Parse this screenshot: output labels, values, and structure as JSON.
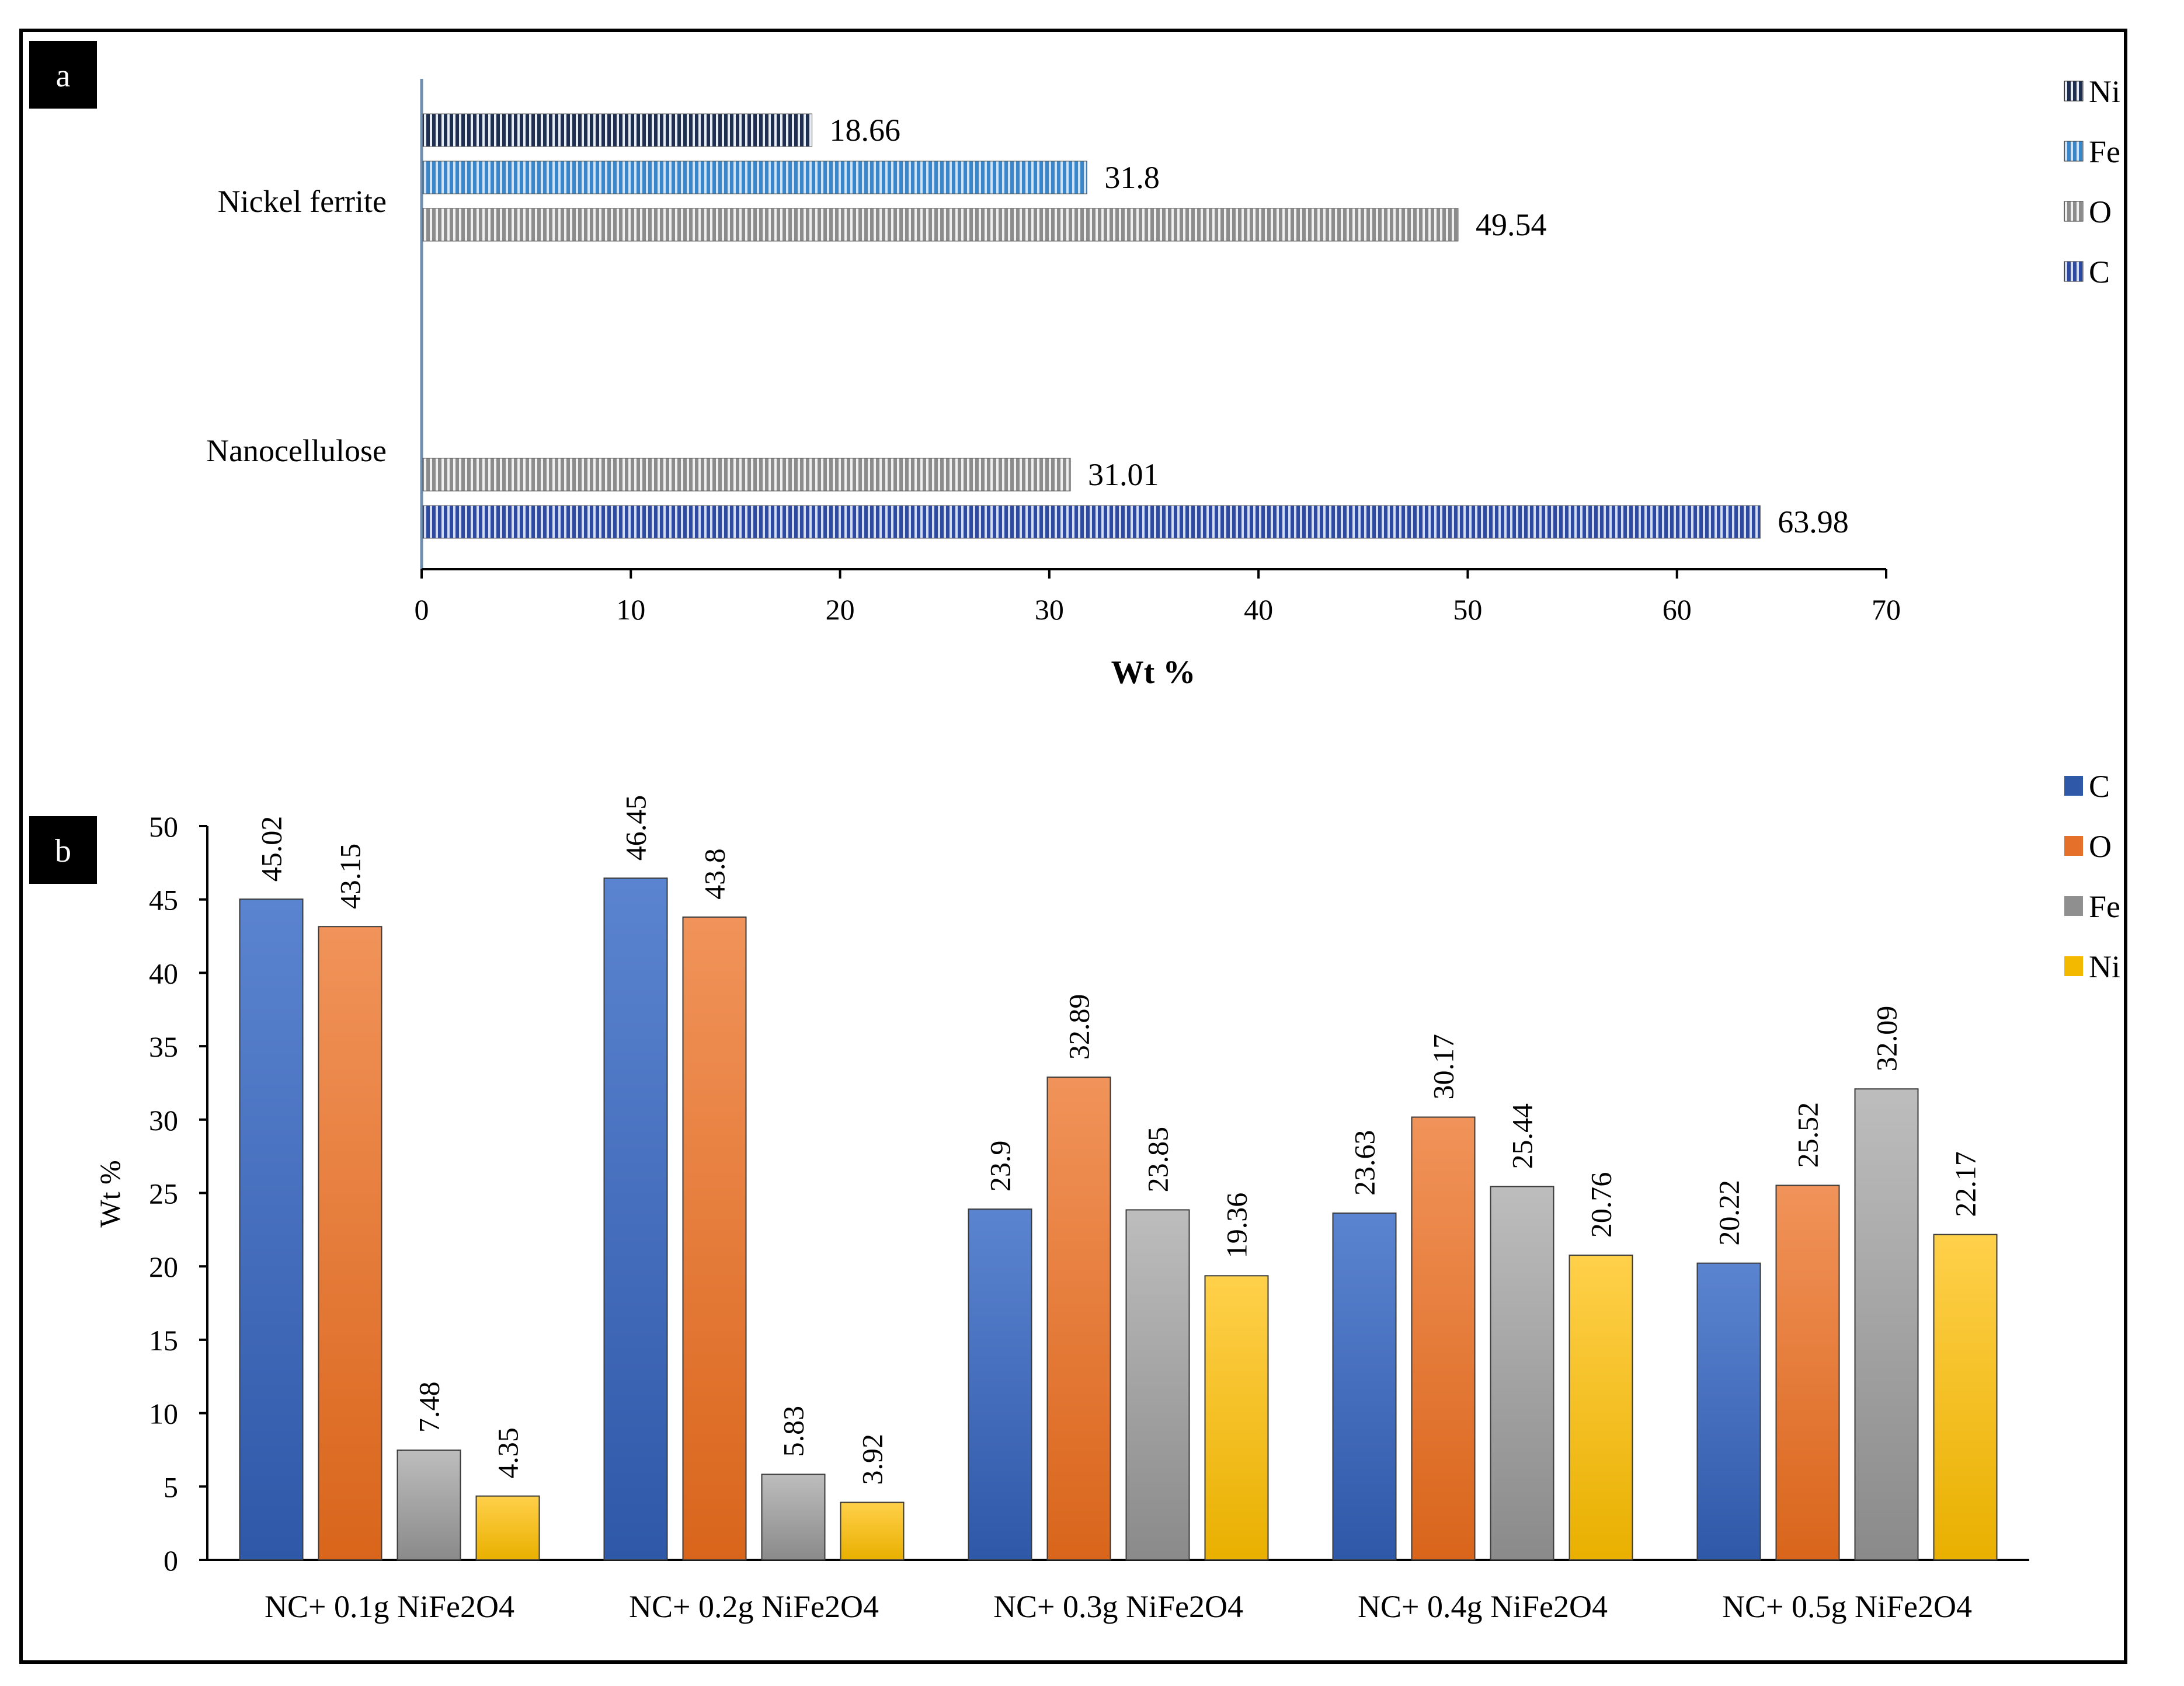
{
  "chart_data": [
    {
      "panel_label": "a",
      "type": "bar",
      "orientation": "horizontal",
      "categories": [
        "Nickel ferrite",
        "Nanocellulose"
      ],
      "series": [
        {
          "name": "Ni",
          "color": "#1f2f4f",
          "values": [
            18.66,
            null
          ]
        },
        {
          "name": "Fe",
          "color": "#3b86c8",
          "values": [
            31.8,
            null
          ]
        },
        {
          "name": "O",
          "color": "#9a9a9a",
          "values": [
            49.54,
            31.01
          ]
        },
        {
          "name": "C",
          "color": "#2d4aa0",
          "values": [
            null,
            63.98
          ]
        }
      ],
      "xlabel": "Wt %",
      "ylabel": "",
      "xlim": [
        0,
        70
      ],
      "xticks": [
        "0",
        "10",
        "20",
        "30",
        "40",
        "50",
        "60",
        "70"
      ],
      "legend_position": "top-right",
      "pattern": "vertical-stripes"
    },
    {
      "panel_label": "b",
      "type": "bar",
      "orientation": "vertical",
      "categories": [
        "NC+ 0.1g NiFe2O4",
        "NC+ 0.2g NiFe2O4",
        "NC+ 0.3g NiFe2O4",
        "NC+ 0.4g NiFe2O4",
        "NC+ 0.5g NiFe2O4"
      ],
      "series": [
        {
          "name": "C",
          "color": "#4472c4",
          "values": [
            45.02,
            46.45,
            23.9,
            23.63,
            20.22
          ]
        },
        {
          "name": "O",
          "color": "#ed7d31",
          "values": [
            43.15,
            43.8,
            32.89,
            30.17,
            25.52
          ]
        },
        {
          "name": "Fe",
          "color": "#a5a5a5",
          "values": [
            7.48,
            5.83,
            23.85,
            25.44,
            32.09
          ]
        },
        {
          "name": "Ni",
          "color": "#ffc000",
          "values": [
            4.35,
            3.92,
            19.36,
            20.76,
            22.17
          ]
        }
      ],
      "ylabel": "Wt %",
      "xlabel": "",
      "ylim": [
        0,
        50
      ],
      "yticks": [
        "0",
        "5",
        "10",
        "15",
        "20",
        "25",
        "30",
        "35",
        "40",
        "45",
        "50"
      ],
      "legend_position": "top-right"
    }
  ]
}
